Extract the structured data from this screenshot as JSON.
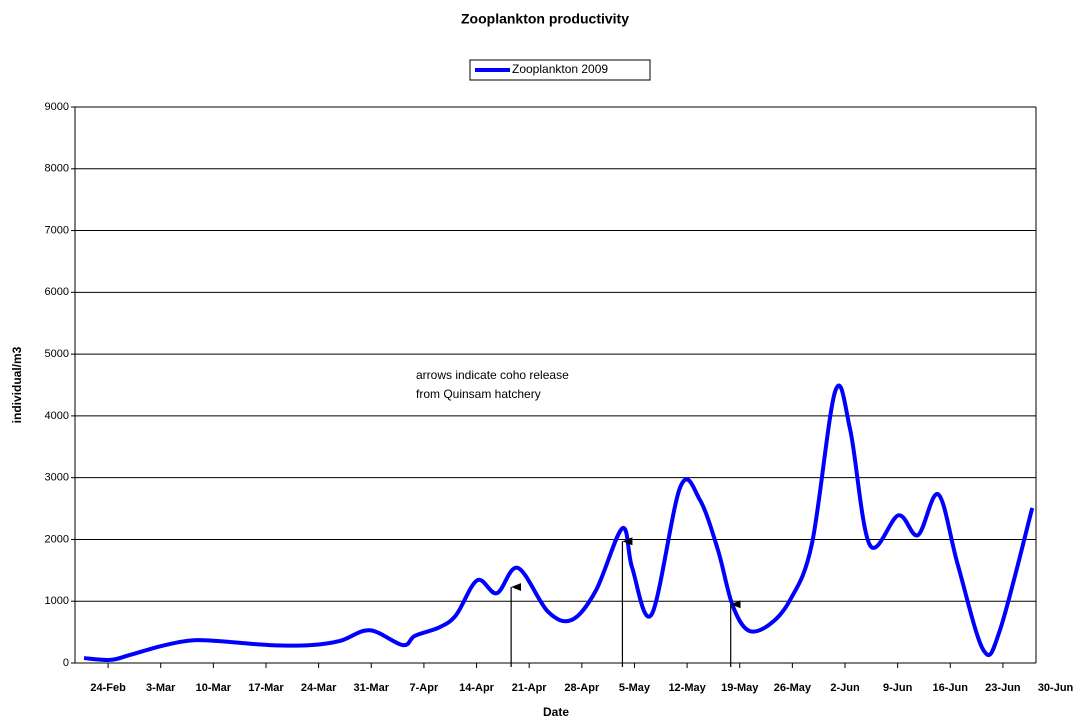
{
  "chart_data": {
    "type": "line",
    "title": "Zooplankton productivity",
    "x_label": "Date",
    "y_label": "individual/m3",
    "xlim": [
      -4.4,
      123.4
    ],
    "ylim": [
      0,
      9000
    ],
    "yticks": [
      0,
      1000,
      2000,
      3000,
      4000,
      5000,
      6000,
      7000,
      8000,
      9000
    ],
    "xticks": [
      {
        "value": 0,
        "label": "24-Feb"
      },
      {
        "value": 7,
        "label": "3-Mar"
      },
      {
        "value": 14,
        "label": "10-Mar"
      },
      {
        "value": 21,
        "label": "17-Mar"
      },
      {
        "value": 28,
        "label": "24-Mar"
      },
      {
        "value": 35,
        "label": "31-Mar"
      },
      {
        "value": 42,
        "label": "7-Apr"
      },
      {
        "value": 49,
        "label": "14-Apr"
      },
      {
        "value": 56,
        "label": "21-Apr"
      },
      {
        "value": 63,
        "label": "28-Apr"
      },
      {
        "value": 70,
        "label": "5-May"
      },
      {
        "value": 77,
        "label": "12-May"
      },
      {
        "value": 84,
        "label": "19-May"
      },
      {
        "value": 91,
        "label": "26-May"
      },
      {
        "value": 98,
        "label": "2-Jun"
      },
      {
        "value": 105,
        "label": "9-Jun"
      },
      {
        "value": 112,
        "label": "16-Jun"
      },
      {
        "value": 119,
        "label": "23-Jun"
      },
      {
        "value": 126,
        "label": "30-Jun"
      }
    ],
    "grid": true,
    "legend": "top",
    "x": [
      -3.2,
      0.3,
      2.9,
      7.6,
      11.6,
      16.2,
      21.5,
      26.9,
      30.9,
      34.8,
      39.2,
      40.8,
      44.1,
      46.3,
      49.1,
      51.7,
      54.5,
      58.5,
      61.7,
      64.9,
      68.4,
      69.7,
      72.3,
      76.1,
      78.7,
      81.1,
      83.0,
      85.1,
      87.8,
      90.7,
      93.6,
      96.7,
      98.7,
      101.3,
      105.1,
      107.7,
      110.4,
      113.0,
      116.4,
      118.6,
      122.9
    ],
    "series": [
      {
        "name": "Zooplankton 2009",
        "color": "#0000ff",
        "values": [
          80,
          50,
          130,
          290,
          370,
          340,
          290,
          290,
          360,
          530,
          290,
          440,
          580,
          780,
          1340,
          1130,
          1540,
          830,
          700,
          1180,
          2180,
          1540,
          790,
          2850,
          2640,
          1830,
          950,
          530,
          610,
          1020,
          1930,
          4400,
          3770,
          1910,
          2390,
          2070,
          2730,
          1590,
          210,
          530,
          2510
        ]
      }
    ],
    "annotations": [
      "arrows indicate coho release",
      "from Quinsam hatchery"
    ],
    "arrows": [
      {
        "x": 53.6,
        "y": 1230
      },
      {
        "x": 68.4,
        "y": 1970
      },
      {
        "x": 82.8,
        "y": 950
      }
    ]
  }
}
